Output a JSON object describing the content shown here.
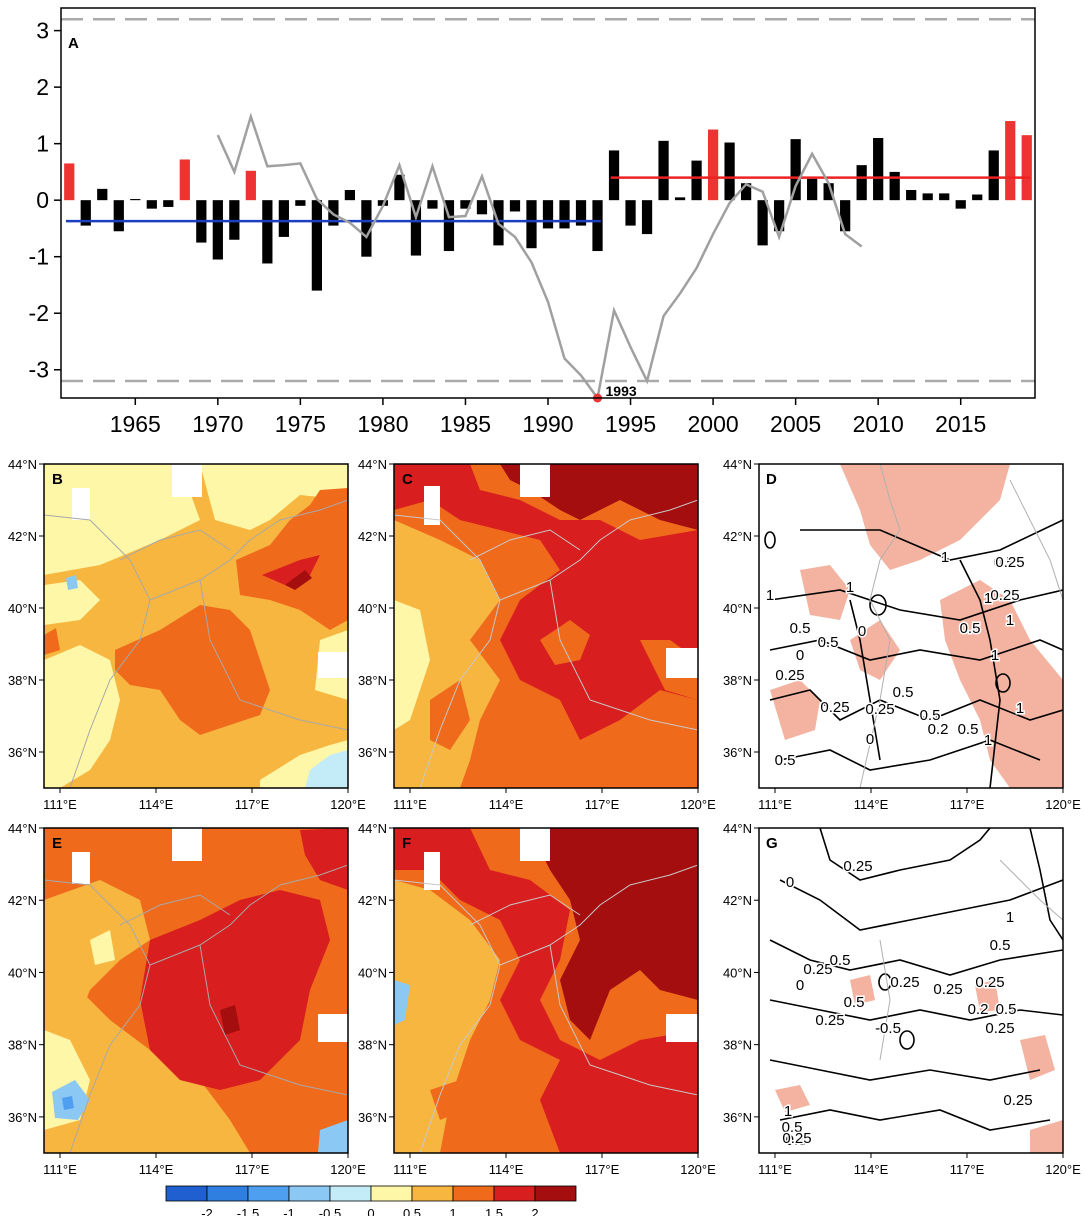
{
  "chart_data": [
    {
      "panel": "A",
      "type": "bar",
      "title": "",
      "xlabel": "",
      "ylabel": "",
      "xlim": [
        1960.5,
        2019.5
      ],
      "ylim": [
        -3.5,
        3.4
      ],
      "yticks": [
        -3,
        -2,
        -1,
        0,
        1,
        2,
        3
      ],
      "xticks": [
        1965,
        1970,
        1975,
        1980,
        1985,
        1990,
        1995,
        2000,
        2005,
        2010,
        2015
      ],
      "years": [
        1961,
        1962,
        1963,
        1964,
        1965,
        1966,
        1967,
        1968,
        1969,
        1970,
        1971,
        1972,
        1973,
        1974,
        1975,
        1976,
        1977,
        1978,
        1979,
        1980,
        1981,
        1982,
        1983,
        1984,
        1985,
        1986,
        1987,
        1988,
        1989,
        1990,
        1991,
        1992,
        1993,
        1994,
        1995,
        1996,
        1997,
        1998,
        1999,
        2000,
        2001,
        2002,
        2003,
        2004,
        2005,
        2006,
        2007,
        2008,
        2009,
        2010,
        2011,
        2012,
        2013,
        2014,
        2015,
        2016,
        2017,
        2018,
        2019
      ],
      "anomalies": [
        0.65,
        -0.45,
        0.2,
        -0.55,
        0.02,
        -0.15,
        -0.12,
        0.72,
        -0.75,
        -1.05,
        -0.7,
        0.52,
        -1.12,
        -0.65,
        -0.1,
        -1.6,
        -0.45,
        0.18,
        -1.0,
        -0.1,
        0.45,
        -0.98,
        -0.15,
        -0.9,
        -0.15,
        -0.25,
        -0.8,
        -0.2,
        -0.85,
        -0.5,
        -0.5,
        -0.45,
        -0.9,
        0.88,
        -0.45,
        -0.6,
        1.05,
        0.05,
        0.7,
        1.25,
        1.02,
        0.3,
        -0.8,
        -0.55,
        1.08,
        0.38,
        0.3,
        -0.55,
        0.62,
        1.1,
        0.5,
        0.18,
        0.12,
        0.12,
        -0.15,
        0.1,
        0.88,
        1.4,
        1.15
      ],
      "highlight_years": [
        1961,
        1968,
        1972,
        2000,
        2018,
        2019
      ],
      "highlight_color": "#ee3333",
      "bar_color": "#000000",
      "mk_statistic": {
        "years": [
          1970,
          1971,
          1972,
          1973,
          1974,
          1975,
          1976,
          1977,
          1978,
          1979,
          1980,
          1981,
          1982,
          1983,
          1984,
          1985,
          1986,
          1987,
          1988,
          1989,
          1990,
          1991,
          1992,
          1993,
          1994,
          1995,
          1996,
          1997,
          1998,
          1999,
          2000,
          2001,
          2002,
          2003,
          2004,
          2005,
          2006,
          2007,
          2008,
          2009
        ],
        "values": [
          1.15,
          0.5,
          1.48,
          0.6,
          0.62,
          0.65,
          0.02,
          -0.25,
          -0.4,
          -0.65,
          -0.1,
          0.62,
          -0.3,
          0.6,
          -0.3,
          -0.28,
          0.42,
          -0.42,
          -0.65,
          -1.1,
          -1.8,
          -2.8,
          -3.1,
          -3.5,
          -1.95,
          -2.6,
          -3.2,
          -2.05,
          -1.65,
          -1.2,
          -0.6,
          -0.05,
          0.28,
          0.15,
          -0.65,
          0.25,
          0.82,
          0.3,
          -0.6,
          -0.82
        ],
        "color": "#a0a0a0"
      },
      "change_point": {
        "year": 1993,
        "value": -3.5,
        "label": "1993",
        "color": "#ee3333"
      },
      "mean_before": {
        "from": 1961,
        "to": 1993,
        "value": -0.37,
        "color": "#1a3fbf"
      },
      "mean_after": {
        "from": 1994,
        "to": 2019,
        "value": 0.4,
        "color": "#ee2222"
      },
      "significance_lines": [
        3.2,
        -3.2
      ],
      "significance_color": "#aaaaaa"
    },
    {
      "panel": "B",
      "type": "heatmap",
      "lon_range": [
        110.5,
        120
      ],
      "lat_range": [
        35,
        44
      ]
    },
    {
      "panel": "C",
      "type": "heatmap",
      "lon_range": [
        110.5,
        120
      ],
      "lat_range": [
        35,
        44
      ]
    },
    {
      "panel": "D",
      "type": "contour",
      "lon_range": [
        110.5,
        120
      ],
      "lat_range": [
        35,
        44
      ],
      "contour_labels": [
        "1",
        "1",
        "0.5",
        "1",
        "0.5",
        "0.5",
        "0",
        "0.25",
        "0.5",
        "0.25",
        "0.5",
        "0.25",
        "0.2",
        "0.5",
        "1",
        "0.25",
        "0",
        "1",
        "0.5",
        "1",
        "0.5",
        "1",
        "0.25",
        "0",
        "1"
      ]
    },
    {
      "panel": "E",
      "type": "heatmap",
      "lon_range": [
        110.5,
        120
      ],
      "lat_range": [
        35,
        44
      ]
    },
    {
      "panel": "F",
      "type": "heatmap",
      "lon_range": [
        110.5,
        120
      ],
      "lat_range": [
        35,
        44
      ]
    },
    {
      "panel": "G",
      "type": "contour",
      "lon_range": [
        110.5,
        120
      ],
      "lat_range": [
        35,
        44
      ],
      "contour_labels": [
        "0",
        "0.25",
        "1",
        "0.5",
        "0.25",
        "0.5",
        "0",
        "0.25",
        "0.25",
        "0.5",
        "0.25",
        "0.25",
        "0.2",
        "0.5",
        "0.25",
        "-0.5",
        "0.5",
        "0.25",
        "1",
        "0.5",
        "0.25"
      ]
    }
  ],
  "panel_letters": {
    "A": "A",
    "B": "B",
    "C": "C",
    "D": "D",
    "E": "E",
    "F": "F",
    "G": "G"
  },
  "map_axes": {
    "lon_ticks": [
      "111°E",
      "114°E",
      "117°E",
      "120°E"
    ],
    "lat_ticks": [
      "44°N",
      "42°N",
      "40°N",
      "38°N",
      "36°N"
    ]
  },
  "colorbar": {
    "tick_labels": [
      "-2",
      "-1.5",
      "-1",
      "-0.5",
      "0",
      "0.5",
      "1",
      "1.5",
      "2"
    ],
    "colors": [
      "#1f5fcf",
      "#2f7fe0",
      "#4f9ff0",
      "#8cc8f4",
      "#c4ecf8",
      "#fff7a8",
      "#f7b640",
      "#f06a1c",
      "#d81e1e",
      "#a50e0e"
    ]
  },
  "colors": {
    "c05": "#fff7a8",
    "c1": "#f7b640",
    "c15": "#f06a1c",
    "c2": "#d81e1e",
    "c25": "#a50e0e",
    "light_blue": "#c4ecf8",
    "mid_blue": "#8cc8f4",
    "salmon": "#f3b3a0",
    "border": "#a8a8a8"
  }
}
